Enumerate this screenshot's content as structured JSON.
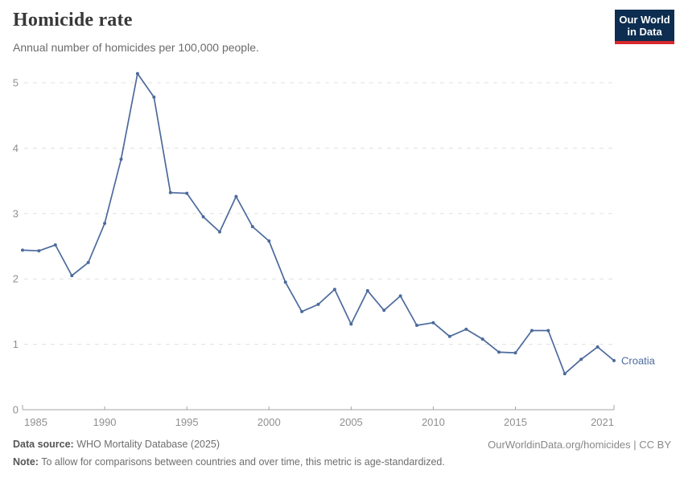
{
  "header": {
    "title": "Homicide rate",
    "subtitle": "Annual number of homicides per 100,000 people.",
    "logo": {
      "line1": "Our World",
      "line2": "in Data"
    }
  },
  "chart_data": {
    "type": "line",
    "title": "Homicide rate",
    "subtitle": "Annual number of homicides per 100,000 people.",
    "xlabel": "",
    "ylabel": "",
    "xlim": [
      1985,
      2021
    ],
    "ylim": [
      0,
      5
    ],
    "xticks": [
      1985,
      1990,
      1995,
      2000,
      2005,
      2010,
      2015,
      2021
    ],
    "yticks": [
      0,
      1,
      2,
      3,
      4,
      5
    ],
    "grid": "horizontal-dashed",
    "legend_position": "line-end-label",
    "series": [
      {
        "name": "Croatia",
        "x": [
          1985,
          1986,
          1987,
          1988,
          1989,
          1990,
          1991,
          1992,
          1993,
          1994,
          1995,
          1996,
          1997,
          1998,
          1999,
          2000,
          2001,
          2002,
          2003,
          2004,
          2005,
          2006,
          2007,
          2008,
          2009,
          2010,
          2011,
          2012,
          2013,
          2014,
          2015,
          2016,
          2017,
          2018,
          2019,
          2020,
          2021
        ],
        "values": [
          2.44,
          2.43,
          2.52,
          2.05,
          2.25,
          2.85,
          3.83,
          5.14,
          4.78,
          3.32,
          3.31,
          2.95,
          2.72,
          3.26,
          2.8,
          2.58,
          1.95,
          1.5,
          1.61,
          1.84,
          1.31,
          1.82,
          1.52,
          1.74,
          1.29,
          1.33,
          1.12,
          1.23,
          1.08,
          0.88,
          0.87,
          1.21,
          1.21,
          0.55,
          0.77,
          0.96,
          0.75
        ]
      }
    ]
  },
  "colors": {
    "line": "#4c6a9c",
    "series_label": "#4c6a9c",
    "grid": "#e0e0e0",
    "axis": "#a3a3a3",
    "tick_text": "#8f8f8f",
    "logo_bg": "#0d2e51",
    "logo_red": "#d7282f",
    "logo_text": "#ffffff"
  },
  "footer": {
    "datasource_label": "Data source:",
    "datasource_value": " WHO Mortality Database (2025)",
    "note_label": "Note:",
    "note_value": " To allow for comparisons between countries and over time, this metric is age-standardized.",
    "rights": "OurWorldinData.org/homicides | CC BY"
  }
}
